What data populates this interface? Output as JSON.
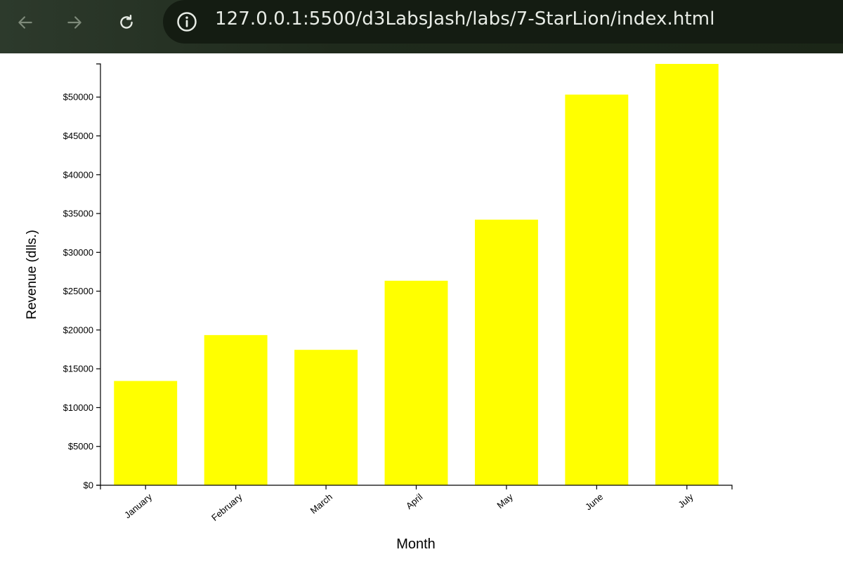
{
  "browser": {
    "url": "127.0.0.1:5500/d3LabsJash/labs/7-StarLion/index.html",
    "icons": {
      "back": "back-arrow-icon",
      "forward": "forward-arrow-icon",
      "reload": "reload-icon",
      "info": "info-icon"
    }
  },
  "chart_data": {
    "type": "bar",
    "categories": [
      "January",
      "February",
      "March",
      "April",
      "May",
      "June",
      "July"
    ],
    "values": [
      13432,
      19342,
      17443,
      26342,
      34213,
      50321,
      54273
    ],
    "xlabel": "Month",
    "ylabel": "Revenue (dlls.)",
    "ylim": [
      0,
      54273
    ],
    "yticks": [
      0,
      5000,
      10000,
      15000,
      20000,
      25000,
      30000,
      35000,
      40000,
      45000,
      50000
    ],
    "ytick_labels": [
      "$0",
      "$5000",
      "$10000",
      "$15000",
      "$20000",
      "$25000",
      "$30000",
      "$35000",
      "$40000",
      "$45000",
      "$50000"
    ],
    "bar_color": "#ffff00",
    "grid": false
  }
}
